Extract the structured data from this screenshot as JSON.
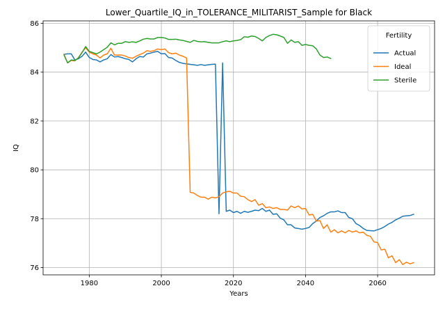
{
  "chart_data": {
    "type": "line",
    "title": "Lower_Quartile_IQ_in_TOLERANCE_MILITARIST_Sample for Black",
    "xlabel": "Years",
    "ylabel": "IQ",
    "xlim": [
      1967.2,
      2075.8
    ],
    "ylim": [
      75.7,
      86.1
    ],
    "xticks": [
      1980,
      2000,
      2020,
      2040,
      2060
    ],
    "yticks": [
      76,
      78,
      80,
      82,
      84,
      86
    ],
    "grid": true,
    "legend": {
      "title": "Fertility",
      "placement": "top-right"
    },
    "series": [
      {
        "name": "Actual",
        "color": "#1f77b4",
        "points": [
          [
            1973,
            84.73
          ],
          [
            1974,
            84.75
          ],
          [
            1975,
            84.75
          ],
          [
            1976,
            84.5
          ],
          [
            1977,
            84.55
          ],
          [
            1978,
            84.65
          ],
          [
            1979,
            84.82
          ],
          [
            1980,
            84.6
          ],
          [
            1981,
            84.52
          ],
          [
            1982,
            84.5
          ],
          [
            1983,
            84.42
          ],
          [
            1984,
            84.5
          ],
          [
            1985,
            84.55
          ],
          [
            1986,
            84.72
          ],
          [
            1987,
            84.62
          ],
          [
            1988,
            84.64
          ],
          [
            1989,
            84.6
          ],
          [
            1990,
            84.55
          ],
          [
            1991,
            84.52
          ],
          [
            1992,
            84.42
          ],
          [
            1993,
            84.55
          ],
          [
            1994,
            84.64
          ],
          [
            1995,
            84.62
          ],
          [
            1996,
            84.75
          ],
          [
            1997,
            84.78
          ],
          [
            1998,
            84.82
          ],
          [
            1999,
            84.85
          ],
          [
            2000,
            84.75
          ],
          [
            2001,
            84.76
          ],
          [
            2002,
            84.6
          ],
          [
            2003,
            84.58
          ],
          [
            2004,
            84.48
          ],
          [
            2005,
            84.4
          ],
          [
            2006,
            84.36
          ],
          [
            2007,
            84.34
          ],
          [
            2008,
            84.32
          ],
          [
            2009,
            84.3
          ],
          [
            2010,
            84.28
          ],
          [
            2011,
            84.31
          ],
          [
            2012,
            84.28
          ],
          [
            2013,
            84.3
          ],
          [
            2014,
            84.32
          ],
          [
            2015,
            84.33
          ],
          [
            2016,
            78.2
          ],
          [
            2017,
            84.38
          ],
          [
            2018,
            78.3
          ],
          [
            2019,
            78.35
          ],
          [
            2020,
            78.25
          ],
          [
            2021,
            78.3
          ],
          [
            2022,
            78.22
          ],
          [
            2023,
            78.3
          ],
          [
            2024,
            78.26
          ],
          [
            2025,
            78.3
          ],
          [
            2026,
            78.35
          ],
          [
            2027,
            78.33
          ],
          [
            2028,
            78.42
          ],
          [
            2029,
            78.3
          ],
          [
            2030,
            78.35
          ],
          [
            2031,
            78.18
          ],
          [
            2032,
            78.2
          ],
          [
            2033,
            78.02
          ],
          [
            2034,
            77.95
          ],
          [
            2035,
            77.75
          ],
          [
            2036,
            77.75
          ],
          [
            2037,
            77.62
          ],
          [
            2038,
            77.6
          ],
          [
            2039,
            77.57
          ],
          [
            2040,
            77.6
          ],
          [
            2041,
            77.64
          ],
          [
            2042,
            77.8
          ],
          [
            2043,
            77.9
          ],
          [
            2044,
            78.05
          ],
          [
            2045,
            78.12
          ],
          [
            2046,
            78.22
          ],
          [
            2047,
            78.28
          ],
          [
            2048,
            78.28
          ],
          [
            2049,
            78.32
          ],
          [
            2050,
            78.25
          ],
          [
            2051,
            78.25
          ],
          [
            2052,
            78.05
          ],
          [
            2053,
            78.0
          ],
          [
            2054,
            77.8
          ],
          [
            2055,
            77.72
          ],
          [
            2056,
            77.6
          ],
          [
            2057,
            77.52
          ],
          [
            2058,
            77.51
          ],
          [
            2059,
            77.5
          ],
          [
            2060,
            77.55
          ],
          [
            2061,
            77.6
          ],
          [
            2062,
            77.68
          ],
          [
            2063,
            77.78
          ],
          [
            2064,
            77.85
          ],
          [
            2065,
            77.95
          ],
          [
            2066,
            78.02
          ],
          [
            2067,
            78.1
          ],
          [
            2068,
            78.12
          ],
          [
            2069,
            78.13
          ],
          [
            2070,
            78.18
          ]
        ]
      },
      {
        "name": "Ideal",
        "color": "#ff7f0e",
        "points": [
          [
            1973,
            84.73
          ],
          [
            1974,
            84.38
          ],
          [
            1975,
            84.48
          ],
          [
            1976,
            84.46
          ],
          [
            1977,
            84.6
          ],
          [
            1978,
            84.82
          ],
          [
            1979,
            85.0
          ],
          [
            1980,
            84.82
          ],
          [
            1981,
            84.75
          ],
          [
            1982,
            84.7
          ],
          [
            1983,
            84.58
          ],
          [
            1984,
            84.7
          ],
          [
            1985,
            84.75
          ],
          [
            1986,
            84.98
          ],
          [
            1987,
            84.7
          ],
          [
            1988,
            84.7
          ],
          [
            1989,
            84.7
          ],
          [
            1990,
            84.66
          ],
          [
            1991,
            84.6
          ],
          [
            1992,
            84.57
          ],
          [
            1993,
            84.65
          ],
          [
            1994,
            84.72
          ],
          [
            1995,
            84.78
          ],
          [
            1996,
            84.88
          ],
          [
            1997,
            84.85
          ],
          [
            1998,
            84.88
          ],
          [
            1999,
            84.95
          ],
          [
            2000,
            84.92
          ],
          [
            2001,
            84.95
          ],
          [
            2002,
            84.8
          ],
          [
            2003,
            84.75
          ],
          [
            2004,
            84.78
          ],
          [
            2005,
            84.7
          ],
          [
            2006,
            84.65
          ],
          [
            2007,
            84.58
          ],
          [
            2008,
            79.08
          ],
          [
            2009,
            79.05
          ],
          [
            2010,
            78.95
          ],
          [
            2011,
            78.88
          ],
          [
            2012,
            78.88
          ],
          [
            2013,
            78.8
          ],
          [
            2014,
            78.88
          ],
          [
            2015,
            78.85
          ],
          [
            2016,
            78.9
          ],
          [
            2017,
            79.05
          ],
          [
            2018,
            79.1
          ],
          [
            2019,
            79.12
          ],
          [
            2020,
            79.05
          ],
          [
            2021,
            79.05
          ],
          [
            2022,
            78.92
          ],
          [
            2023,
            78.9
          ],
          [
            2024,
            78.78
          ],
          [
            2025,
            78.7
          ],
          [
            2026,
            78.78
          ],
          [
            2027,
            78.55
          ],
          [
            2028,
            78.62
          ],
          [
            2029,
            78.45
          ],
          [
            2030,
            78.48
          ],
          [
            2031,
            78.42
          ],
          [
            2032,
            78.45
          ],
          [
            2033,
            78.38
          ],
          [
            2034,
            78.38
          ],
          [
            2035,
            78.35
          ],
          [
            2036,
            78.52
          ],
          [
            2037,
            78.45
          ],
          [
            2038,
            78.52
          ],
          [
            2039,
            78.4
          ],
          [
            2040,
            78.42
          ],
          [
            2041,
            78.15
          ],
          [
            2042,
            78.18
          ],
          [
            2043,
            77.9
          ],
          [
            2044,
            77.92
          ],
          [
            2045,
            77.6
          ],
          [
            2046,
            77.75
          ],
          [
            2047,
            77.45
          ],
          [
            2048,
            77.55
          ],
          [
            2049,
            77.42
          ],
          [
            2050,
            77.5
          ],
          [
            2051,
            77.42
          ],
          [
            2052,
            77.52
          ],
          [
            2053,
            77.45
          ],
          [
            2054,
            77.5
          ],
          [
            2055,
            77.42
          ],
          [
            2056,
            77.45
          ],
          [
            2057,
            77.32
          ],
          [
            2058,
            77.28
          ],
          [
            2059,
            77.05
          ],
          [
            2060,
            77.02
          ],
          [
            2061,
            76.72
          ],
          [
            2062,
            76.75
          ],
          [
            2063,
            76.4
          ],
          [
            2064,
            76.48
          ],
          [
            2065,
            76.2
          ],
          [
            2066,
            76.32
          ],
          [
            2067,
            76.12
          ],
          [
            2068,
            76.22
          ],
          [
            2069,
            76.15
          ],
          [
            2070,
            76.2
          ]
        ]
      },
      {
        "name": "Sterile",
        "color": "#2ca02c",
        "points": [
          [
            1973,
            84.7
          ],
          [
            1974,
            84.38
          ],
          [
            1975,
            84.5
          ],
          [
            1976,
            84.48
          ],
          [
            1977,
            84.58
          ],
          [
            1978,
            84.8
          ],
          [
            1979,
            85.05
          ],
          [
            1980,
            84.85
          ],
          [
            1981,
            84.8
          ],
          [
            1982,
            84.75
          ],
          [
            1983,
            84.82
          ],
          [
            1984,
            84.92
          ],
          [
            1985,
            85.02
          ],
          [
            1986,
            85.2
          ],
          [
            1987,
            85.12
          ],
          [
            1988,
            85.18
          ],
          [
            1989,
            85.18
          ],
          [
            1990,
            85.25
          ],
          [
            1991,
            85.22
          ],
          [
            1992,
            85.24
          ],
          [
            1993,
            85.22
          ],
          [
            1994,
            85.28
          ],
          [
            1995,
            85.35
          ],
          [
            1996,
            85.38
          ],
          [
            1997,
            85.36
          ],
          [
            1998,
            85.36
          ],
          [
            1999,
            85.42
          ],
          [
            2000,
            85.42
          ],
          [
            2001,
            85.4
          ],
          [
            2002,
            85.34
          ],
          [
            2003,
            85.34
          ],
          [
            2004,
            85.35
          ],
          [
            2005,
            85.32
          ],
          [
            2006,
            85.3
          ],
          [
            2007,
            85.26
          ],
          [
            2008,
            85.22
          ],
          [
            2009,
            85.3
          ],
          [
            2010,
            85.26
          ],
          [
            2011,
            85.24
          ],
          [
            2012,
            85.25
          ],
          [
            2013,
            85.22
          ],
          [
            2014,
            85.2
          ],
          [
            2015,
            85.2
          ],
          [
            2016,
            85.2
          ],
          [
            2017,
            85.25
          ],
          [
            2018,
            85.28
          ],
          [
            2019,
            85.25
          ],
          [
            2020,
            85.28
          ],
          [
            2021,
            85.3
          ],
          [
            2022,
            85.33
          ],
          [
            2023,
            85.45
          ],
          [
            2024,
            85.43
          ],
          [
            2025,
            85.48
          ],
          [
            2026,
            85.46
          ],
          [
            2027,
            85.38
          ],
          [
            2028,
            85.28
          ],
          [
            2029,
            85.42
          ],
          [
            2030,
            85.5
          ],
          [
            2031,
            85.55
          ],
          [
            2032,
            85.53
          ],
          [
            2033,
            85.48
          ],
          [
            2034,
            85.42
          ],
          [
            2035,
            85.18
          ],
          [
            2036,
            85.32
          ],
          [
            2037,
            85.22
          ],
          [
            2038,
            85.25
          ],
          [
            2039,
            85.1
          ],
          [
            2040,
            85.13
          ],
          [
            2041,
            85.1
          ],
          [
            2042,
            85.08
          ],
          [
            2043,
            84.95
          ],
          [
            2044,
            84.7
          ],
          [
            2045,
            84.6
          ],
          [
            2046,
            84.62
          ],
          [
            2047,
            84.56
          ]
        ]
      }
    ]
  }
}
